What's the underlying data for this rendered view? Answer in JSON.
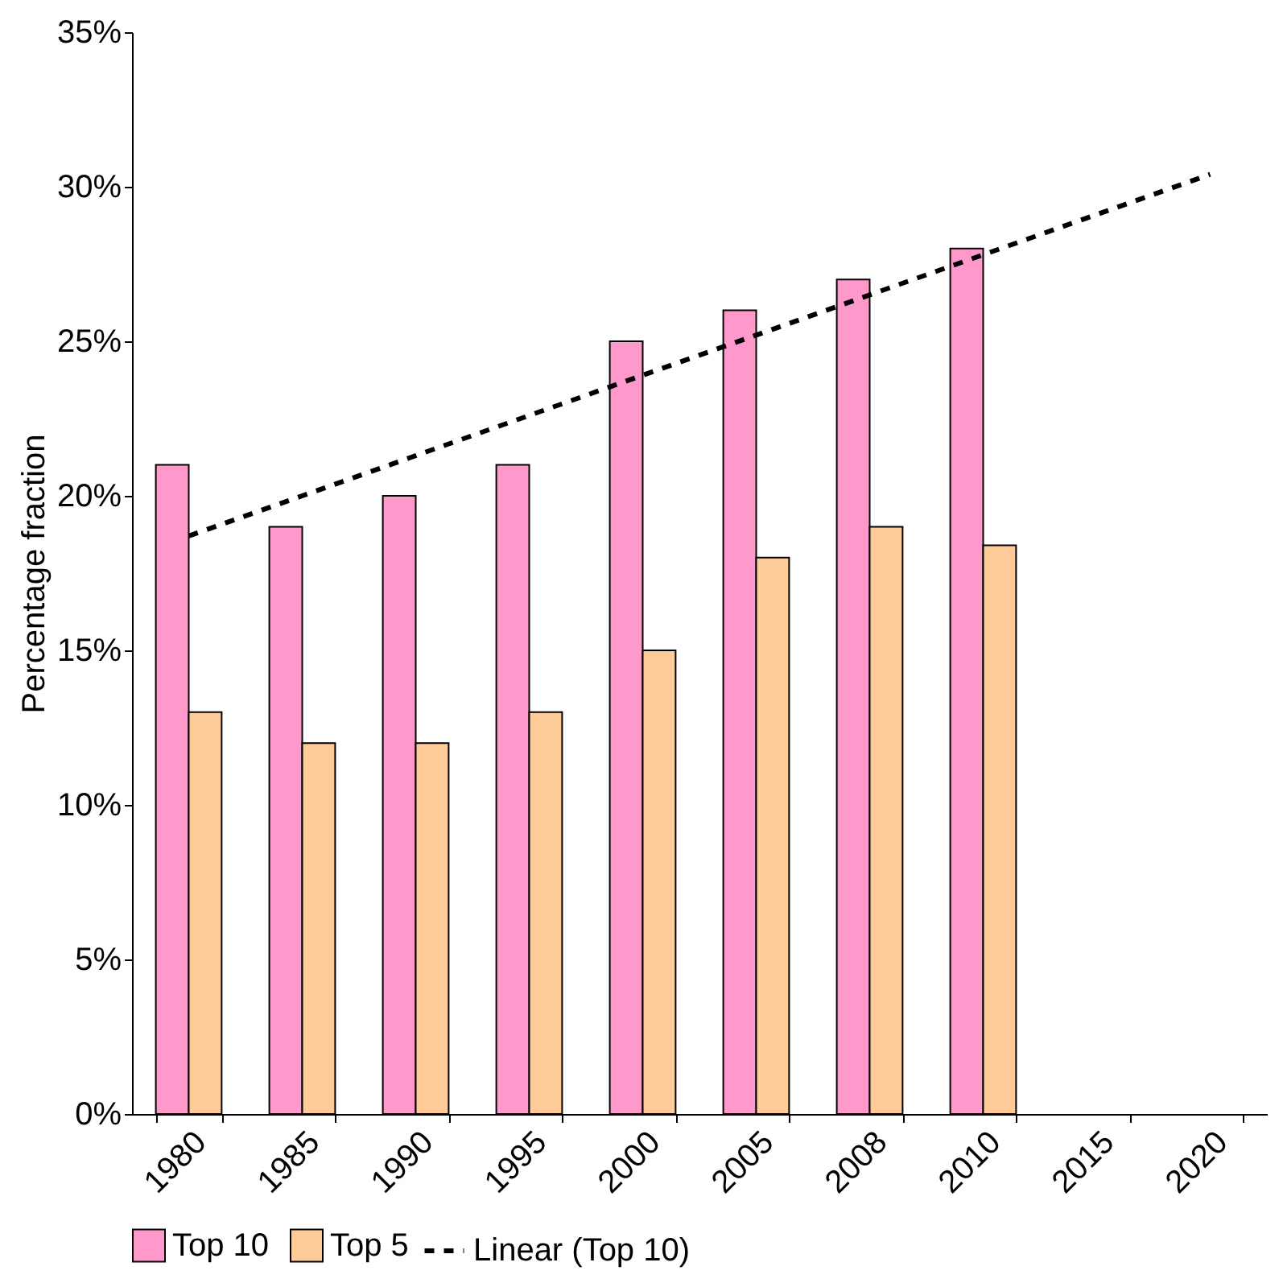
{
  "chart_data": {
    "type": "bar",
    "ylabel": "Percentage fraction",
    "categories": [
      "1980",
      "1985",
      "1990",
      "1995",
      "2000",
      "2005",
      "2008",
      "2010",
      "2015",
      "2020"
    ],
    "series": [
      {
        "name": "Top 10",
        "color": "#ff99cc",
        "values": [
          21,
          19,
          20,
          21,
          25,
          26,
          27,
          28,
          null,
          null
        ]
      },
      {
        "name": "Top 5",
        "color": "#ffcc99",
        "values": [
          13,
          12,
          12,
          13,
          15,
          18,
          19,
          18.4,
          null,
          null
        ]
      },
      {
        "name": "Linear (Top 10)",
        "type": "line",
        "color": "#000000",
        "line_style": "dashed",
        "values": [
          18.7,
          20.0,
          21.3,
          22.6,
          23.9,
          25.2,
          26.5,
          27.8,
          29.1,
          30.4
        ]
      }
    ],
    "ylim": [
      0,
      35
    ],
    "yticks": [
      {
        "value": 0,
        "label": "0%"
      },
      {
        "value": 5,
        "label": "5%"
      },
      {
        "value": 10,
        "label": "10%"
      },
      {
        "value": 15,
        "label": "15%"
      },
      {
        "value": 20,
        "label": "20%"
      },
      {
        "value": 25,
        "label": "25%"
      },
      {
        "value": 30,
        "label": "30%"
      },
      {
        "value": 35,
        "label": "35%"
      }
    ],
    "legend": "bottom",
    "grid": false
  }
}
